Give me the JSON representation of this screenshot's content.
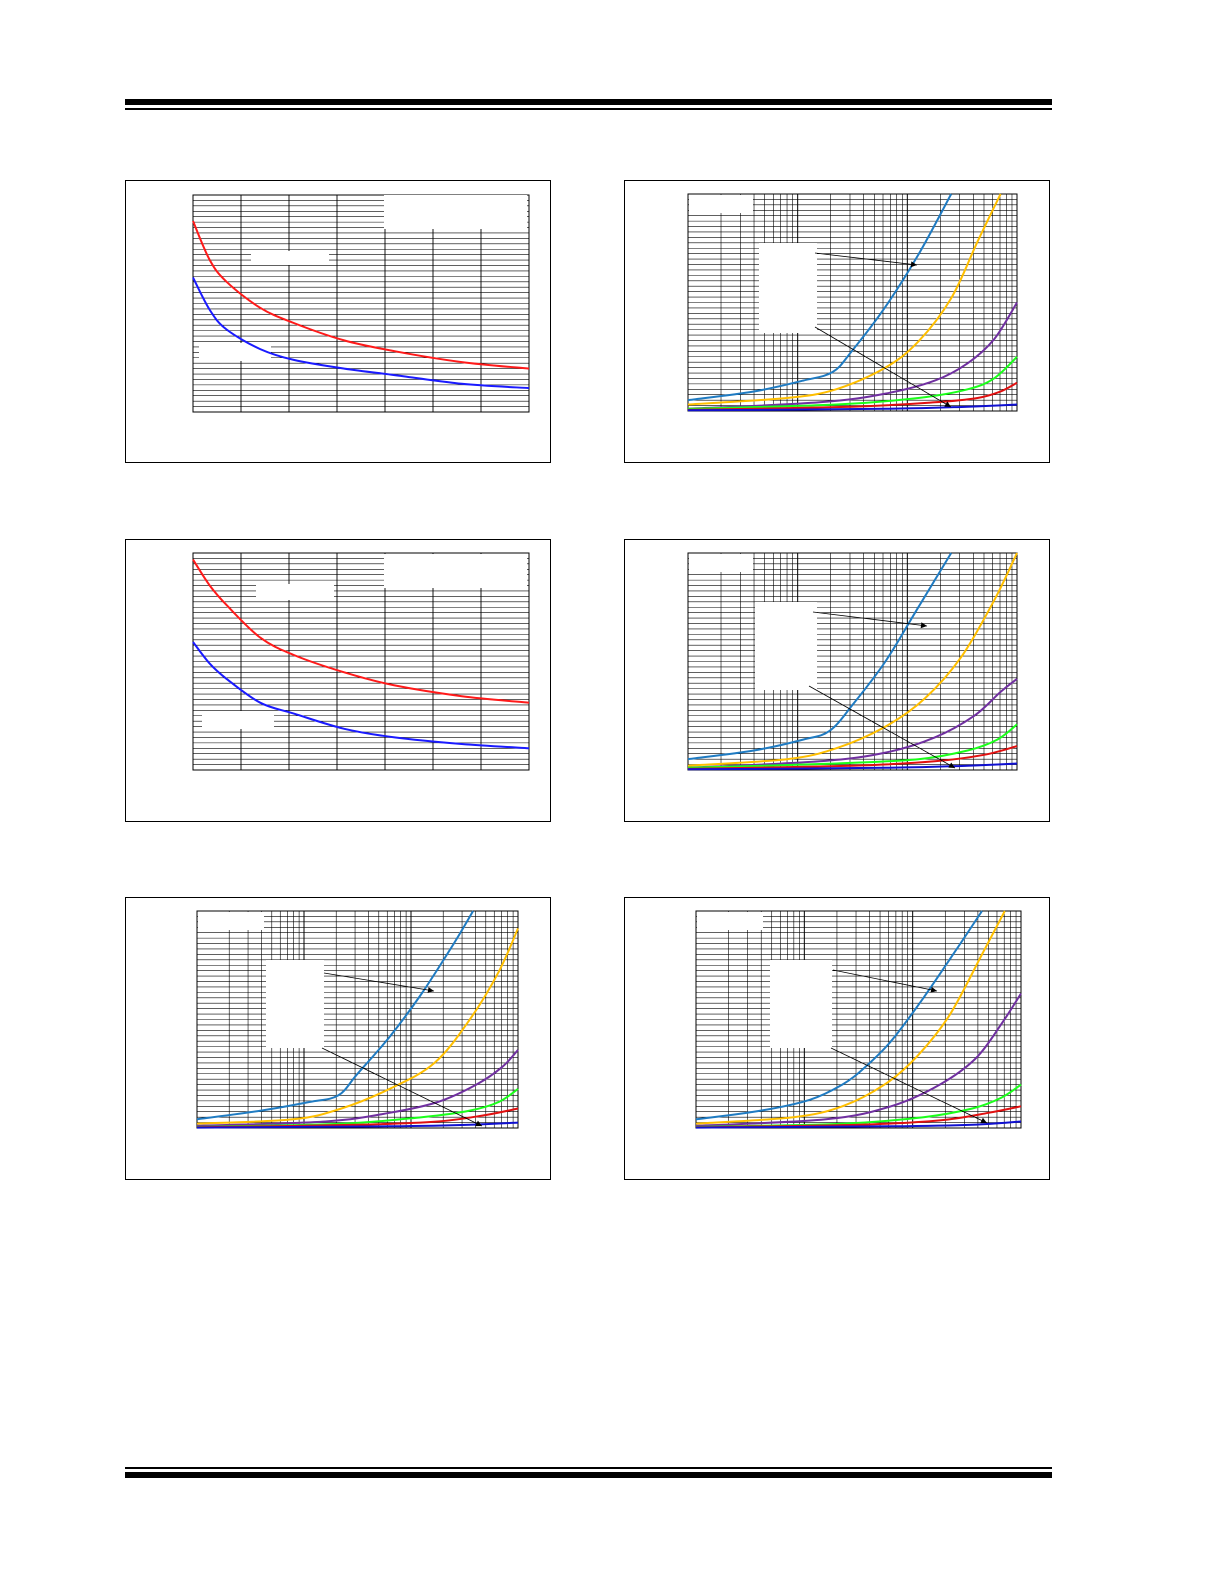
{
  "page": {
    "header_rule": "",
    "footer_rule": ""
  },
  "colors": {
    "grid": "#000000",
    "red": "#ff1a1a",
    "blue": "#1a1aff",
    "steel": "#1f7bc2",
    "orange": "#ffbf00",
    "purple": "#7030a0",
    "green": "#1aff1a",
    "darkred": "#e01010",
    "navy": "#1010d0"
  },
  "chart_data": [
    {
      "type": "line",
      "panel": "top-left",
      "grid": "on",
      "series": [
        {
          "color": "red",
          "x": [
            0.0,
            0.05,
            0.1,
            0.2,
            0.3,
            0.45,
            0.6,
            0.8,
            1.0
          ],
          "y": [
            0.88,
            0.7,
            0.6,
            0.48,
            0.41,
            0.33,
            0.28,
            0.23,
            0.2
          ]
        },
        {
          "color": "blue",
          "x": [
            0.0,
            0.05,
            0.1,
            0.2,
            0.3,
            0.45,
            0.6,
            0.8,
            1.0
          ],
          "y": [
            0.62,
            0.47,
            0.38,
            0.29,
            0.24,
            0.2,
            0.17,
            0.13,
            0.11
          ]
        }
      ]
    },
    {
      "type": "line",
      "panel": "top-right",
      "grid": "on",
      "series": [
        {
          "color": "steel",
          "k": 2.2,
          "x": [
            0.0,
            0.2,
            0.35,
            0.44,
            0.5,
            0.6,
            0.7,
            0.8
          ],
          "y": [
            0.05,
            0.09,
            0.14,
            0.18,
            0.28,
            0.48,
            0.72,
            1.0
          ]
        },
        {
          "color": "orange",
          "x": [
            0.0,
            0.3,
            0.45,
            0.6,
            0.7,
            0.8,
            0.88,
            0.95
          ],
          "y": [
            0.03,
            0.06,
            0.1,
            0.2,
            0.32,
            0.52,
            0.78,
            1.0
          ]
        },
        {
          "color": "purple",
          "x": [
            0.0,
            0.4,
            0.6,
            0.75,
            0.85,
            0.93,
            1.0
          ],
          "y": [
            0.01,
            0.04,
            0.08,
            0.14,
            0.22,
            0.33,
            0.5
          ]
        },
        {
          "color": "green",
          "x": [
            0.0,
            0.45,
            0.7,
            0.85,
            0.93,
            1.0
          ],
          "y": [
            0.01,
            0.03,
            0.06,
            0.1,
            0.15,
            0.25
          ]
        },
        {
          "color": "darkred",
          "x": [
            0.0,
            0.5,
            0.75,
            0.88,
            0.95,
            1.0
          ],
          "y": [
            0.005,
            0.02,
            0.04,
            0.06,
            0.09,
            0.13
          ]
        },
        {
          "color": "navy",
          "x": [
            0.0,
            0.6,
            0.85,
            1.0
          ],
          "y": [
            0.003,
            0.01,
            0.02,
            0.03
          ]
        }
      ]
    },
    {
      "type": "line",
      "panel": "middle-left",
      "grid": "on",
      "series": [
        {
          "color": "red",
          "x": [
            0.0,
            0.05,
            0.1,
            0.2,
            0.3,
            0.45,
            0.6,
            0.8,
            1.0
          ],
          "y": [
            0.97,
            0.85,
            0.76,
            0.61,
            0.53,
            0.45,
            0.39,
            0.34,
            0.31
          ]
        },
        {
          "color": "blue",
          "x": [
            0.0,
            0.05,
            0.1,
            0.2,
            0.3,
            0.45,
            0.6,
            0.8,
            1.0
          ],
          "y": [
            0.59,
            0.49,
            0.42,
            0.31,
            0.26,
            0.19,
            0.15,
            0.12,
            0.1
          ]
        }
      ]
    },
    {
      "type": "line",
      "panel": "middle-right",
      "grid": "on",
      "series": [
        {
          "color": "steel",
          "x": [
            0.0,
            0.2,
            0.35,
            0.43,
            0.5,
            0.6,
            0.7,
            0.8
          ],
          "y": [
            0.05,
            0.09,
            0.14,
            0.18,
            0.3,
            0.5,
            0.75,
            1.0
          ]
        },
        {
          "color": "orange",
          "x": [
            0.0,
            0.3,
            0.45,
            0.6,
            0.72,
            0.83,
            0.93,
            1.0
          ],
          "y": [
            0.02,
            0.05,
            0.1,
            0.2,
            0.33,
            0.52,
            0.78,
            1.0
          ]
        },
        {
          "color": "purple",
          "x": [
            0.0,
            0.4,
            0.6,
            0.75,
            0.87,
            0.95,
            1.0
          ],
          "y": [
            0.01,
            0.04,
            0.08,
            0.15,
            0.25,
            0.36,
            0.42
          ]
        },
        {
          "color": "green",
          "x": [
            0.0,
            0.45,
            0.7,
            0.85,
            0.94,
            1.0
          ],
          "y": [
            0.01,
            0.03,
            0.05,
            0.09,
            0.14,
            0.21
          ]
        },
        {
          "color": "darkred",
          "x": [
            0.0,
            0.5,
            0.75,
            0.9,
            1.0
          ],
          "y": [
            0.005,
            0.02,
            0.04,
            0.07,
            0.11
          ]
        },
        {
          "color": "navy",
          "x": [
            0.0,
            0.6,
            0.85,
            1.0
          ],
          "y": [
            0.003,
            0.01,
            0.02,
            0.03
          ]
        }
      ]
    },
    {
      "type": "line",
      "panel": "bottom-left",
      "grid": "on",
      "series": [
        {
          "color": "steel",
          "x": [
            0.0,
            0.2,
            0.35,
            0.44,
            0.5,
            0.6,
            0.7,
            0.8,
            0.86
          ],
          "y": [
            0.04,
            0.08,
            0.12,
            0.15,
            0.25,
            0.42,
            0.62,
            0.85,
            1.0
          ]
        },
        {
          "color": "orange",
          "x": [
            0.0,
            0.3,
            0.45,
            0.6,
            0.74,
            0.85,
            0.94,
            1.0
          ],
          "y": [
            0.02,
            0.04,
            0.09,
            0.18,
            0.3,
            0.5,
            0.72,
            0.92
          ]
        },
        {
          "color": "purple",
          "x": [
            0.0,
            0.4,
            0.6,
            0.75,
            0.87,
            0.95,
            1.0
          ],
          "y": [
            0.01,
            0.03,
            0.07,
            0.12,
            0.2,
            0.28,
            0.36
          ]
        },
        {
          "color": "green",
          "x": [
            0.0,
            0.45,
            0.7,
            0.85,
            0.94,
            1.0
          ],
          "y": [
            0.005,
            0.02,
            0.05,
            0.08,
            0.12,
            0.18
          ]
        },
        {
          "color": "darkred",
          "x": [
            0.0,
            0.5,
            0.75,
            0.9,
            1.0
          ],
          "y": [
            0.003,
            0.015,
            0.03,
            0.06,
            0.09
          ]
        },
        {
          "color": "navy",
          "x": [
            0.0,
            0.6,
            0.85,
            1.0
          ],
          "y": [
            0.002,
            0.008,
            0.015,
            0.025
          ]
        }
      ]
    },
    {
      "type": "line",
      "panel": "bottom-right",
      "grid": "on",
      "series": [
        {
          "color": "steel",
          "x": [
            0.0,
            0.2,
            0.35,
            0.45,
            0.52,
            0.6,
            0.7,
            0.8,
            0.88
          ],
          "y": [
            0.04,
            0.08,
            0.13,
            0.2,
            0.28,
            0.4,
            0.6,
            0.82,
            1.0
          ]
        },
        {
          "color": "orange",
          "x": [
            0.0,
            0.3,
            0.45,
            0.58,
            0.68,
            0.78,
            0.88,
            0.95
          ],
          "y": [
            0.02,
            0.05,
            0.1,
            0.2,
            0.33,
            0.52,
            0.8,
            1.0
          ]
        },
        {
          "color": "purple",
          "x": [
            0.0,
            0.4,
            0.6,
            0.75,
            0.86,
            0.94,
            1.0
          ],
          "y": [
            0.01,
            0.04,
            0.1,
            0.2,
            0.32,
            0.48,
            0.62
          ]
        },
        {
          "color": "green",
          "x": [
            0.0,
            0.45,
            0.7,
            0.85,
            0.94,
            1.0
          ],
          "y": [
            0.005,
            0.02,
            0.05,
            0.09,
            0.14,
            0.2
          ]
        },
        {
          "color": "darkred",
          "x": [
            0.0,
            0.5,
            0.75,
            0.9,
            1.0
          ],
          "y": [
            0.003,
            0.015,
            0.035,
            0.07,
            0.1
          ]
        },
        {
          "color": "navy",
          "x": [
            0.0,
            0.6,
            0.85,
            1.0
          ],
          "y": [
            0.002,
            0.008,
            0.015,
            0.03
          ]
        }
      ]
    }
  ]
}
